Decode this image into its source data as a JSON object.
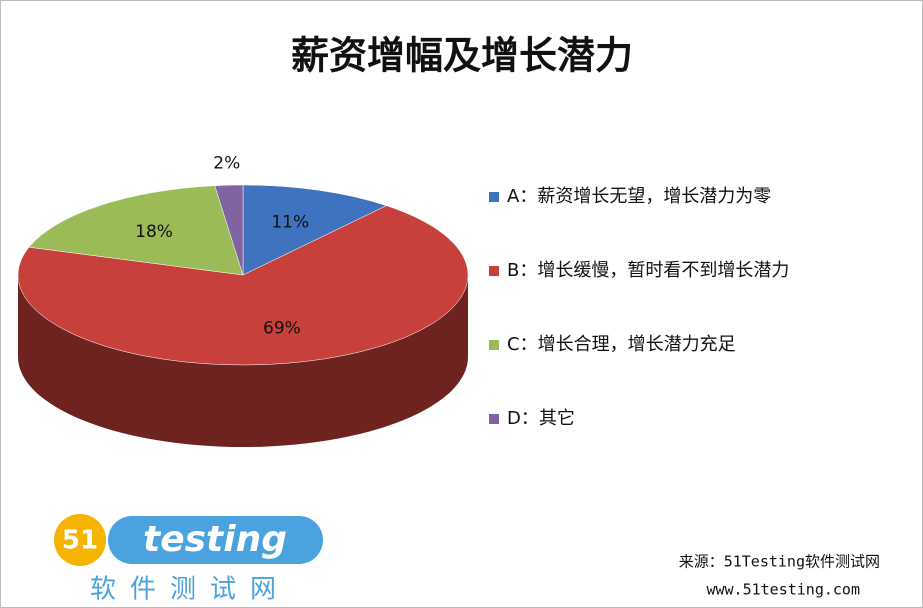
{
  "chart_data": {
    "type": "pie3d",
    "title": "薪资增幅及增长潜力",
    "categories": [
      "A：薪资增长无望，增长潜力为零",
      "B：增长缓慢，暂时看不到增长潜力",
      "C：增长合理，增长潜力充足",
      "D：其它"
    ],
    "values": [
      11,
      69,
      18,
      2
    ],
    "value_labels": [
      "11%",
      "69%",
      "18%",
      "2%"
    ],
    "colors": [
      "#3f73c0",
      "#c8403c",
      "#9bbb59",
      "#8064a2"
    ],
    "source": "来源：51Testing软件测试网",
    "url": "www.51testing.com"
  },
  "logo": {
    "badge": "51",
    "word": "testing",
    "tagline": "软件测试网"
  }
}
